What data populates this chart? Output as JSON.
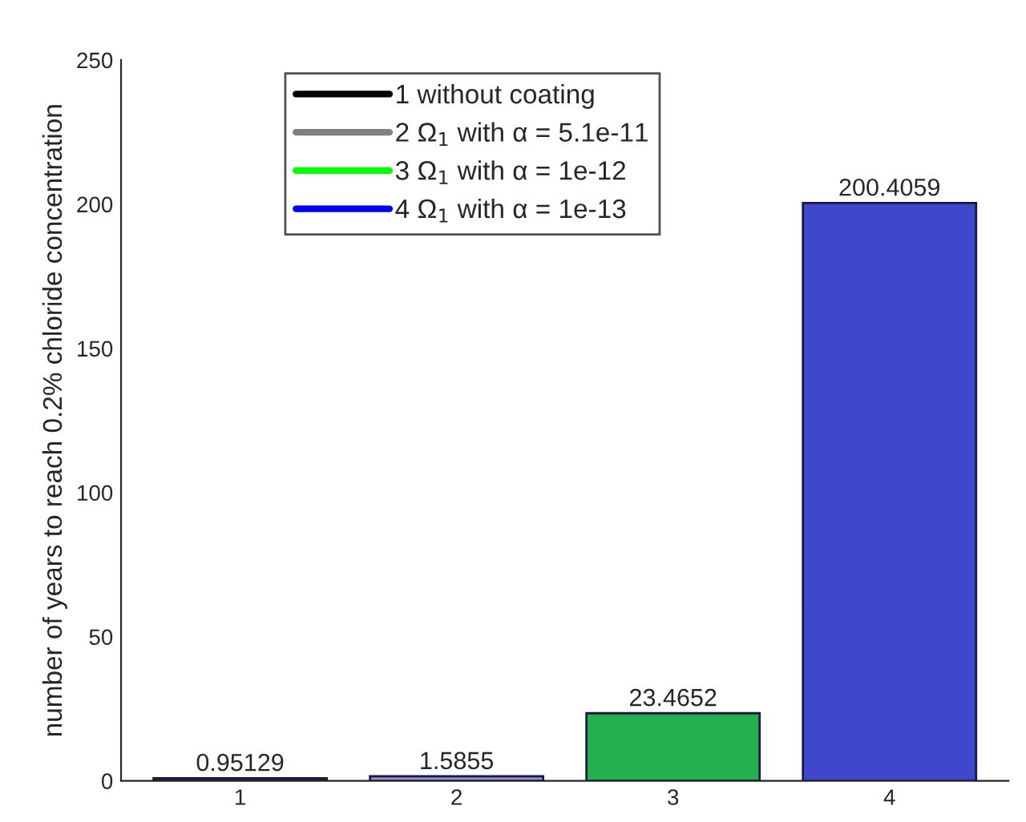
{
  "chart_data": {
    "type": "bar",
    "ylabel": "number of years to reach 0.2% chloride concentration",
    "categories": [
      "1",
      "2",
      "3",
      "4"
    ],
    "series": [
      {
        "values": [
          0.95129,
          1.5855,
          23.4652,
          200.4059
        ],
        "colors": [
          "#1e1e48",
          "#9c9cd8",
          "#22b14c",
          "#3f48cc"
        ]
      },
      {
        "type": "line",
        "name": "1 without coating",
        "color": "#000000",
        "values": [
          null,
          null,
          null,
          null
        ]
      },
      {
        "type": "line",
        "name": "2 Ω$_{1}$ with α = 5.1e-11",
        "color": "#808080",
        "values": [
          null,
          null,
          null,
          null
        ]
      },
      {
        "type": "line",
        "name": "3 Ω$_{1}$ with α = 1e-12",
        "color": "#00ff00",
        "values": [
          null,
          null,
          null,
          null
        ]
      },
      {
        "type": "line",
        "name": "4 Ω$_{1}$ with α = 1e-13",
        "color": "#0000ff",
        "values": [
          null,
          null,
          null,
          null
        ]
      }
    ],
    "ylim": [
      0,
      250
    ],
    "yticks": [
      0,
      50,
      100,
      150,
      200,
      250
    ],
    "data_labels": true,
    "legend": "top left",
    "grid": false
  }
}
